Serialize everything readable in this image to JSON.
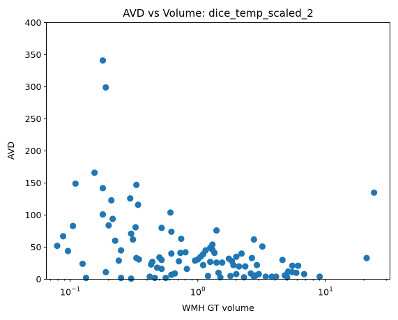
{
  "chart_data": {
    "type": "scatter",
    "title": "AVD vs Volume: dice_temp_scaled_2",
    "xlabel": "WMH GT volume",
    "ylabel": "AVD",
    "xscale": "log",
    "xlim": [
      0.065,
      32
    ],
    "ylim": [
      0,
      400
    ],
    "grid": false,
    "legend": "none",
    "marker_color": "#1f77b4",
    "x_ticks": [
      {
        "value": 0.1,
        "base": "10",
        "exp": "−1"
      },
      {
        "value": 1,
        "base": "10",
        "exp": "0"
      },
      {
        "value": 10,
        "base": "10",
        "exp": "1"
      }
    ],
    "y_ticks": [
      0,
      50,
      100,
      150,
      200,
      250,
      300,
      350,
      400
    ],
    "points": [
      {
        "x": 0.18,
        "y": 341
      },
      {
        "x": 0.19,
        "y": 299
      },
      {
        "x": 0.155,
        "y": 166
      },
      {
        "x": 0.11,
        "y": 149
      },
      {
        "x": 0.18,
        "y": 142
      },
      {
        "x": 0.33,
        "y": 147
      },
      {
        "x": 0.21,
        "y": 123
      },
      {
        "x": 0.295,
        "y": 126
      },
      {
        "x": 0.34,
        "y": 116
      },
      {
        "x": 0.61,
        "y": 104
      },
      {
        "x": 0.18,
        "y": 101
      },
      {
        "x": 0.215,
        "y": 94
      },
      {
        "x": 0.105,
        "y": 83
      },
      {
        "x": 0.2,
        "y": 84
      },
      {
        "x": 0.325,
        "y": 81
      },
      {
        "x": 0.52,
        "y": 80
      },
      {
        "x": 0.3,
        "y": 71
      },
      {
        "x": 0.62,
        "y": 74
      },
      {
        "x": 1.4,
        "y": 76
      },
      {
        "x": 0.088,
        "y": 67
      },
      {
        "x": 0.225,
        "y": 60
      },
      {
        "x": 0.31,
        "y": 62
      },
      {
        "x": 0.74,
        "y": 63
      },
      {
        "x": 2.75,
        "y": 62
      },
      {
        "x": 0.079,
        "y": 52
      },
      {
        "x": 0.096,
        "y": 44
      },
      {
        "x": 0.25,
        "y": 45
      },
      {
        "x": 1.3,
        "y": 54
      },
      {
        "x": 3.2,
        "y": 51
      },
      {
        "x": 0.33,
        "y": 33
      },
      {
        "x": 0.345,
        "y": 31
      },
      {
        "x": 0.5,
        "y": 34
      },
      {
        "x": 0.52,
        "y": 30
      },
      {
        "x": 0.62,
        "y": 40
      },
      {
        "x": 0.73,
        "y": 41
      },
      {
        "x": 0.8,
        "y": 42
      },
      {
        "x": 0.24,
        "y": 29
      },
      {
        "x": 0.44,
        "y": 27
      },
      {
        "x": 0.43,
        "y": 23
      },
      {
        "x": 0.71,
        "y": 28
      },
      {
        "x": 0.95,
        "y": 29
      },
      {
        "x": 1.0,
        "y": 31
      },
      {
        "x": 1.05,
        "y": 35
      },
      {
        "x": 1.1,
        "y": 39
      },
      {
        "x": 1.15,
        "y": 45
      },
      {
        "x": 1.25,
        "y": 49
      },
      {
        "x": 1.3,
        "y": 46
      },
      {
        "x": 1.35,
        "y": 41
      },
      {
        "x": 1.1,
        "y": 22
      },
      {
        "x": 1.25,
        "y": 27
      },
      {
        "x": 1.4,
        "y": 26
      },
      {
        "x": 1.55,
        "y": 26
      },
      {
        "x": 1.75,
        "y": 32
      },
      {
        "x": 1.85,
        "y": 28
      },
      {
        "x": 1.9,
        "y": 22
      },
      {
        "x": 2.0,
        "y": 35
      },
      {
        "x": 2.2,
        "y": 40
      },
      {
        "x": 2.1,
        "y": 20
      },
      {
        "x": 2.35,
        "y": 20
      },
      {
        "x": 2.65,
        "y": 33
      },
      {
        "x": 2.9,
        "y": 22
      },
      {
        "x": 0.125,
        "y": 24
      },
      {
        "x": 0.48,
        "y": 18
      },
      {
        "x": 0.52,
        "y": 16
      },
      {
        "x": 0.82,
        "y": 16
      },
      {
        "x": 4.6,
        "y": 30
      },
      {
        "x": 5.5,
        "y": 21
      },
      {
        "x": 6.1,
        "y": 21
      },
      {
        "x": 0.19,
        "y": 11
      },
      {
        "x": 0.62,
        "y": 7
      },
      {
        "x": 0.66,
        "y": 9
      },
      {
        "x": 1.45,
        "y": 10
      },
      {
        "x": 2.0,
        "y": 8
      },
      {
        "x": 2.6,
        "y": 9
      },
      {
        "x": 2.85,
        "y": 6
      },
      {
        "x": 3.0,
        "y": 8
      },
      {
        "x": 5.1,
        "y": 12
      },
      {
        "x": 5.5,
        "y": 11
      },
      {
        "x": 5.9,
        "y": 10
      },
      {
        "x": 6.8,
        "y": 8
      },
      {
        "x": 0.133,
        "y": 2
      },
      {
        "x": 0.25,
        "y": 2
      },
      {
        "x": 0.3,
        "y": 1
      },
      {
        "x": 0.42,
        "y": 4
      },
      {
        "x": 0.46,
        "y": 2
      },
      {
        "x": 0.56,
        "y": 2
      },
      {
        "x": 1.2,
        "y": 5
      },
      {
        "x": 1.5,
        "y": 3
      },
      {
        "x": 1.8,
        "y": 5
      },
      {
        "x": 2.3,
        "y": 3
      },
      {
        "x": 2.75,
        "y": 4
      },
      {
        "x": 3.4,
        "y": 4
      },
      {
        "x": 3.8,
        "y": 4
      },
      {
        "x": 4.1,
        "y": 4
      },
      {
        "x": 4.8,
        "y": 6
      },
      {
        "x": 5.0,
        "y": 3
      },
      {
        "x": 9.0,
        "y": 4
      },
      {
        "x": 21,
        "y": 33
      },
      {
        "x": 24,
        "y": 135
      }
    ]
  }
}
